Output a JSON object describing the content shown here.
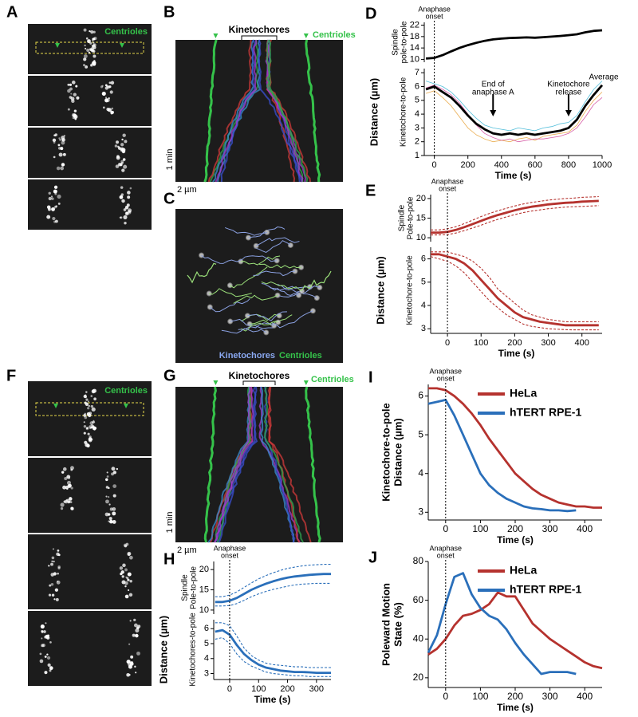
{
  "panels": [
    {
      "label": "A",
      "texts": [
        "Centrioles"
      ]
    },
    {
      "label": "B",
      "texts": [
        "Kinetochores",
        "Centrioles",
        "1 min",
        "2 µm"
      ]
    },
    {
      "label": "C",
      "texts": [
        "Kinetochores",
        "Centrioles"
      ]
    },
    {
      "label": "F",
      "texts": [
        "Centrioles"
      ]
    },
    {
      "label": "G",
      "texts": [
        "Kinetochores",
        "Centrioles",
        "1 min",
        "2 µm"
      ]
    }
  ],
  "chart_data": [
    {
      "type": "line",
      "label": "D",
      "ylabel": [
        "Distance (µm)"
      ],
      "xlabel": "Time (s)",
      "x": [
        -50,
        0,
        50,
        100,
        150,
        200,
        250,
        300,
        350,
        400,
        450,
        500,
        550,
        600,
        650,
        700,
        750,
        800,
        850,
        900,
        950,
        1000
      ],
      "xlim": [
        -60,
        1000
      ],
      "xticks": [
        0,
        200,
        400,
        600,
        800,
        1000
      ],
      "annotations": [
        {
          "kind": "onset",
          "x": 0,
          "text": [
            "Anaphase",
            "onset"
          ]
        },
        {
          "kind": "arrow",
          "x": 350,
          "text": [
            "End of",
            "anaphase A"
          ]
        },
        {
          "kind": "arrow",
          "x": 800,
          "text": [
            "Kinetochore",
            "release"
          ]
        }
      ],
      "axes": [
        {
          "ylabel": [
            "Spindle",
            "pole-to-pole"
          ],
          "ylim": [
            9,
            23
          ],
          "yticks": [
            10,
            14,
            18,
            22
          ],
          "series": [
            {
              "color": "#000000",
              "style": "bold",
              "values": [
                10.3,
                10.5,
                11.5,
                12.8,
                14,
                15,
                15.8,
                16.5,
                17,
                17.3,
                17.5,
                17.6,
                17.7,
                17.6,
                17.8,
                18,
                18.2,
                18.5,
                18.8,
                19.5,
                20,
                20.2
              ]
            }
          ]
        },
        {
          "ylabel": [
            "Kinetochore-to-pole"
          ],
          "ylim": [
            1,
            7.3
          ],
          "yticks": [
            1,
            2,
            3,
            4,
            5,
            6,
            7
          ],
          "series": [
            {
              "color": "#e8a33c",
              "style": "thin",
              "values": [
                5.5,
                5.7,
                5.2,
                4.6,
                3.8,
                3.0,
                2.5,
                2.2,
                2.0,
                2.1,
                2.0,
                2.2,
                2.3,
                2.1,
                2.4,
                2.5,
                2.6,
                2.7,
                3.2,
                4.2,
                5.0,
                5.6
              ]
            },
            {
              "color": "#3fb7d6",
              "style": "thin",
              "values": [
                6.4,
                6.2,
                6.0,
                5.6,
                5.0,
                4.3,
                3.7,
                3.2,
                3.0,
                2.9,
                2.8,
                3.0,
                2.9,
                2.8,
                3.0,
                3.1,
                3.3,
                3.4,
                3.9,
                4.9,
                5.8,
                6.4
              ]
            },
            {
              "color": "#d24d9e",
              "style": "thin",
              "values": [
                5.9,
                6.1,
                5.8,
                5.4,
                4.8,
                4.0,
                3.2,
                2.6,
                2.3,
                2.1,
                2.2,
                2.0,
                2.1,
                2.2,
                2.2,
                2.3,
                2.4,
                2.6,
                3.0,
                3.8,
                4.7,
                5.2
              ]
            },
            {
              "name": "Average",
              "color": "#000000",
              "style": "bold",
              "values": [
                5.8,
                6.0,
                5.6,
                5.2,
                4.6,
                3.9,
                3.3,
                2.9,
                2.6,
                2.5,
                2.6,
                2.5,
                2.6,
                2.5,
                2.6,
                2.7,
                2.8,
                3.0,
                3.6,
                4.6,
                5.4,
                6.1
              ]
            }
          ]
        }
      ]
    },
    {
      "type": "line",
      "label": "E",
      "ylabel": [
        "Distance (µm)"
      ],
      "xlabel": "Time (s)",
      "x": [
        -50,
        -25,
        0,
        25,
        50,
        75,
        100,
        125,
        150,
        175,
        200,
        225,
        250,
        275,
        300,
        325,
        350,
        375,
        400,
        425,
        450
      ],
      "xlim": [
        -50,
        460
      ],
      "xticks": [
        0,
        100,
        200,
        300,
        400
      ],
      "annotations": [
        {
          "kind": "onset",
          "x": 0,
          "text": [
            "Anaphase",
            "onset"
          ]
        }
      ],
      "axes": [
        {
          "ylabel": [
            "Spindle",
            "Pole-to-pole"
          ],
          "ylim": [
            9,
            21
          ],
          "yticks": [
            10,
            15,
            20
          ],
          "series": [
            {
              "color": "#b5322e",
              "style": "dashed",
              "values": [
                12.0,
                12.0,
                12.3,
                12.8,
                13.6,
                14.5,
                15.4,
                16.2,
                16.9,
                17.5,
                18.1,
                18.6,
                19.0,
                19.3,
                19.6,
                19.8,
                20.0,
                20.1,
                20.3,
                20.4,
                20.5
              ]
            },
            {
              "color": "#b5322e",
              "style": "dashed",
              "values": [
                10.7,
                10.7,
                10.8,
                11.2,
                11.8,
                12.5,
                13.2,
                14.0,
                14.7,
                15.3,
                15.9,
                16.4,
                16.8,
                17.1,
                17.4,
                17.6,
                17.8,
                17.9,
                18.0,
                18.1,
                18.2
              ]
            },
            {
              "color": "#b5322e",
              "style": "bold",
              "values": [
                11.3,
                11.3,
                11.5,
                12,
                12.7,
                13.5,
                14.3,
                15.1,
                15.8,
                16.4,
                17,
                17.5,
                17.9,
                18.2,
                18.5,
                18.7,
                18.9,
                19.0,
                19.2,
                19.3,
                19.4
              ]
            }
          ]
        },
        {
          "ylabel": [
            "Kinetochore-to-pole"
          ],
          "ylim": [
            2.8,
            6.5
          ],
          "yticks": [
            3,
            4,
            5,
            6
          ],
          "series": [
            {
              "color": "#b5322e",
              "style": "dashed",
              "values": [
                6.3,
                6.3,
                6.3,
                6.2,
                6.1,
                5.9,
                5.6,
                5.2,
                4.7,
                4.4,
                4.1,
                3.8,
                3.6,
                3.5,
                3.4,
                3.35,
                3.3,
                3.3,
                3.3,
                3.3,
                3.3
              ]
            },
            {
              "color": "#b5322e",
              "style": "dashed",
              "values": [
                6.1,
                6.0,
                5.9,
                5.7,
                5.4,
                5.0,
                4.6,
                4.2,
                3.9,
                3.6,
                3.4,
                3.2,
                3.1,
                3.05,
                3.0,
                2.98,
                2.96,
                2.95,
                2.95,
                2.95,
                2.95
              ]
            },
            {
              "color": "#b5322e",
              "style": "bold",
              "values": [
                6.2,
                6.2,
                6.1,
                6.0,
                5.8,
                5.5,
                5.1,
                4.7,
                4.3,
                4.0,
                3.7,
                3.5,
                3.4,
                3.3,
                3.25,
                3.2,
                3.15,
                3.15,
                3.15,
                3.15,
                3.15
              ]
            }
          ]
        }
      ]
    },
    {
      "type": "line",
      "label": "H",
      "ylabel": [
        "Distance (µm)"
      ],
      "xlabel": "Time (s)",
      "x": [
        -50,
        -25,
        0,
        25,
        50,
        75,
        100,
        125,
        150,
        175,
        200,
        225,
        250,
        275,
        300,
        325,
        350
      ],
      "xlim": [
        -55,
        350
      ],
      "xticks": [
        0,
        100,
        200,
        300
      ],
      "annotations": [
        {
          "kind": "onset",
          "x": 0,
          "text": [
            "Anaphase",
            "onset"
          ]
        }
      ],
      "axes": [
        {
          "ylabel": [
            "Spindle",
            "Pole-to-pole"
          ],
          "ylim": [
            9,
            22
          ],
          "yticks": [
            10,
            15,
            20
          ],
          "series": [
            {
              "color": "#2a6fba",
              "style": "dashed",
              "values": [
                13.3,
                13.3,
                13.7,
                14.5,
                15.6,
                16.7,
                17.7,
                18.5,
                19.2,
                19.8,
                20.3,
                20.6,
                20.9,
                21.1,
                21.2,
                21.3,
                21.3
              ]
            },
            {
              "color": "#2a6fba",
              "style": "dashed",
              "values": [
                11,
                11,
                11.1,
                11.6,
                12.4,
                13.3,
                14.0,
                14.6,
                15.1,
                15.5,
                15.9,
                16.2,
                16.4,
                16.5,
                16.6,
                16.6,
                16.6
              ]
            },
            {
              "color": "#2a6fba",
              "style": "bold",
              "values": [
                12,
                12,
                12.3,
                13,
                14,
                15,
                15.8,
                16.5,
                17.1,
                17.6,
                18,
                18.3,
                18.5,
                18.7,
                18.8,
                18.9,
                18.9
              ]
            }
          ]
        },
        {
          "ylabel": [
            "Kinetochores-to-pole"
          ],
          "ylim": [
            2.6,
            6.6
          ],
          "yticks": [
            3,
            4,
            5,
            6
          ],
          "series": [
            {
              "color": "#2a6fba",
              "style": "dashed",
              "values": [
                6.4,
                6.4,
                6.2,
                5.5,
                4.7,
                4.2,
                3.9,
                3.7,
                3.6,
                3.55,
                3.5,
                3.45,
                3.45,
                3.4,
                3.4,
                3.4,
                3.4
              ]
            },
            {
              "color": "#2a6fba",
              "style": "dashed",
              "values": [
                5.3,
                5.4,
                5.0,
                4.3,
                3.8,
                3.5,
                3.3,
                3.1,
                3.0,
                2.95,
                2.9,
                2.85,
                2.85,
                2.8,
                2.8,
                2.8,
                2.8
              ]
            },
            {
              "color": "#2a6fba",
              "style": "bold",
              "values": [
                5.8,
                5.9,
                5.6,
                4.9,
                4.3,
                3.9,
                3.6,
                3.4,
                3.3,
                3.2,
                3.15,
                3.1,
                3.1,
                3.08,
                3.05,
                3.05,
                3.05
              ]
            }
          ]
        }
      ]
    },
    {
      "type": "line",
      "label": "I",
      "xlabel": "Time (s)",
      "legend": "upper right",
      "x": [
        -50,
        -25,
        0,
        25,
        50,
        75,
        100,
        125,
        150,
        175,
        200,
        225,
        250,
        275,
        300,
        325,
        350,
        375,
        400,
        425,
        450
      ],
      "xlim": [
        -50,
        450
      ],
      "xticks": [
        0,
        100,
        200,
        300,
        400
      ],
      "annotations": [
        {
          "kind": "onset",
          "x": 0,
          "text": [
            "Anaphase",
            "onset"
          ]
        }
      ],
      "axes": [
        {
          "ylabel": [
            "Kinetochore-to-pole",
            "Distance (µm)"
          ],
          "ylim": [
            2.8,
            6.3
          ],
          "yticks": [
            3,
            4,
            5,
            6
          ],
          "series": [
            {
              "name": "HeLa",
              "color": "#b5322e",
              "style": "bold",
              "values": [
                6.2,
                6.2,
                6.15,
                6.0,
                5.8,
                5.55,
                5.25,
                4.9,
                4.6,
                4.3,
                4.0,
                3.8,
                3.6,
                3.45,
                3.35,
                3.25,
                3.2,
                3.15,
                3.15,
                3.12,
                3.12
              ]
            },
            {
              "name": "hTERT RPE-1",
              "color": "#2a6fba",
              "style": "bold",
              "values": [
                5.8,
                5.85,
                5.9,
                5.5,
                5.0,
                4.5,
                4.0,
                3.7,
                3.5,
                3.35,
                3.25,
                3.15,
                3.1,
                3.08,
                3.05,
                3.05,
                3.03,
                3.05,
                null,
                null,
                null
              ]
            }
          ]
        }
      ]
    },
    {
      "type": "line",
      "label": "J",
      "xlabel": "Time (s)",
      "legend": "upper right",
      "x": [
        -50,
        -25,
        0,
        25,
        50,
        75,
        100,
        125,
        150,
        175,
        200,
        225,
        250,
        275,
        300,
        325,
        350,
        375,
        400,
        425,
        450
      ],
      "xlim": [
        -50,
        450
      ],
      "xticks": [
        0,
        100,
        200,
        300,
        400
      ],
      "annotations": [
        {
          "kind": "onset",
          "x": 0,
          "text": [
            "Anaphase",
            "onset"
          ]
        }
      ],
      "axes": [
        {
          "ylabel": [
            "Poleward Motion",
            "State (%)"
          ],
          "ylim": [
            15,
            80
          ],
          "yticks": [
            20,
            40,
            60,
            80
          ],
          "series": [
            {
              "name": "HeLa",
              "color": "#b5322e",
              "style": "bold",
              "values": [
                32,
                35,
                40,
                47,
                52,
                53,
                55,
                58,
                64,
                62,
                62,
                55,
                48,
                44,
                40,
                37,
                34,
                31,
                28,
                26,
                25
              ]
            },
            {
              "name": "hTERT RPE-1",
              "color": "#2a6fba",
              "style": "bold",
              "values": [
                33,
                42,
                58,
                72,
                74,
                63,
                56,
                52,
                50,
                45,
                38,
                32,
                27,
                22,
                23,
                23,
                23,
                22,
                null,
                null,
                null
              ]
            }
          ]
        }
      ]
    }
  ]
}
